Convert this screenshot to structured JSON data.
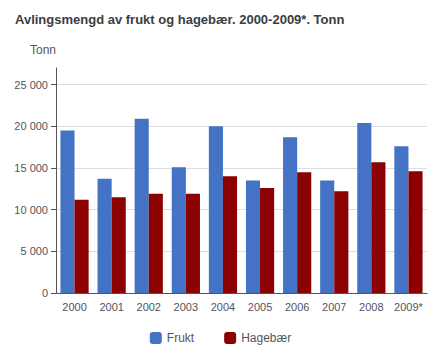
{
  "chart_data": {
    "type": "bar",
    "title": "Avlingsmengd av frukt og hagebær. 2000-2009*. Tonn",
    "ylabel": "Tonn",
    "categories": [
      "2000",
      "2001",
      "2002",
      "2003",
      "2004",
      "2005",
      "2006",
      "2007",
      "2008",
      "2009*"
    ],
    "series": [
      {
        "name": "Frukt",
        "color": "#4472C4",
        "values": [
          19500,
          13700,
          20900,
          15100,
          20000,
          13500,
          18700,
          13500,
          20400,
          17600
        ]
      },
      {
        "name": "Hagebær",
        "color": "#8B0000",
        "values": [
          11200,
          11500,
          11900,
          11900,
          14000,
          12600,
          14500,
          12200,
          15700,
          14600
        ]
      }
    ],
    "ylim": [
      0,
      27000
    ],
    "yticks": [
      0,
      {
        "value": 5000,
        "label": "5 000"
      },
      {
        "value": 10000,
        "label": "10 000"
      },
      {
        "value": 15000,
        "label": "15 000"
      },
      {
        "value": 20000,
        "label": "20 000"
      },
      {
        "value": 25000,
        "label": "25 000"
      }
    ],
    "grid": true,
    "legend": "bottom"
  }
}
